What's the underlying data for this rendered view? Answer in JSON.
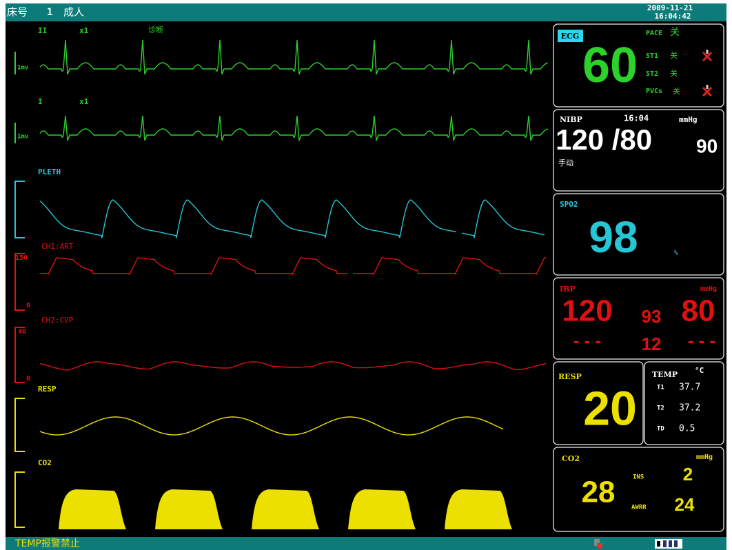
{
  "header": {
    "bed_label": "床号",
    "bed": "1",
    "patient_type": "成人",
    "date": "2009-11-21",
    "time": "16:04:42"
  },
  "waves": {
    "ecg2": {
      "lead": "II",
      "gain": "x1",
      "mode": "诊断",
      "scale": "1mv"
    },
    "ecg1": {
      "lead": "I",
      "gain": "x1",
      "scale": "1mv"
    },
    "pleth": {
      "label": "PLETH"
    },
    "art": {
      "label": "CH1:ART",
      "top": "150",
      "bottom": "0"
    },
    "cvp": {
      "label": "CH2:CVP",
      "top": "40",
      "bottom": "0"
    },
    "resp": {
      "label": "RESP"
    },
    "co2": {
      "label": "CO2"
    }
  },
  "panels": {
    "ecg": {
      "label": "ECG",
      "hr": "60",
      "pace": "PACE",
      "pace_state": "关",
      "st1": "ST1",
      "st1_state": "关",
      "st2": "ST2",
      "st2_state": "关",
      "pvcs": "PVCs",
      "pvcs_state": "关"
    },
    "nibp": {
      "label": "NIBP",
      "time": "16:04",
      "unit": "mmHg",
      "sys_dia": "120 /80",
      "mean": "90",
      "mode": "手动"
    },
    "spo2": {
      "label": "SPO2",
      "value": "98",
      "unit": "%"
    },
    "ibp": {
      "label": "IBP",
      "unit": "mmHg",
      "ch1_sys": "120",
      "ch1_mean": "93",
      "ch1_dia": "80",
      "ch2_sys": "- - -",
      "ch2_mean": "12",
      "ch2_dia": "- - -"
    },
    "resp": {
      "label": "RESP",
      "value": "20"
    },
    "temp": {
      "label": "TEMP",
      "unit": "°C",
      "t1_label": "T1",
      "t1": "37.7",
      "t2_label": "T2",
      "t2": "37.2",
      "td_label": "TD",
      "td": "0.5"
    },
    "co2": {
      "label": "CO2",
      "unit": "mmHg",
      "etco2": "28",
      "ins_label": "INS",
      "ins": "2",
      "awrr_label": "AWRR",
      "awrr": "24"
    }
  },
  "footer": {
    "message": "TEMP报警禁止"
  }
}
